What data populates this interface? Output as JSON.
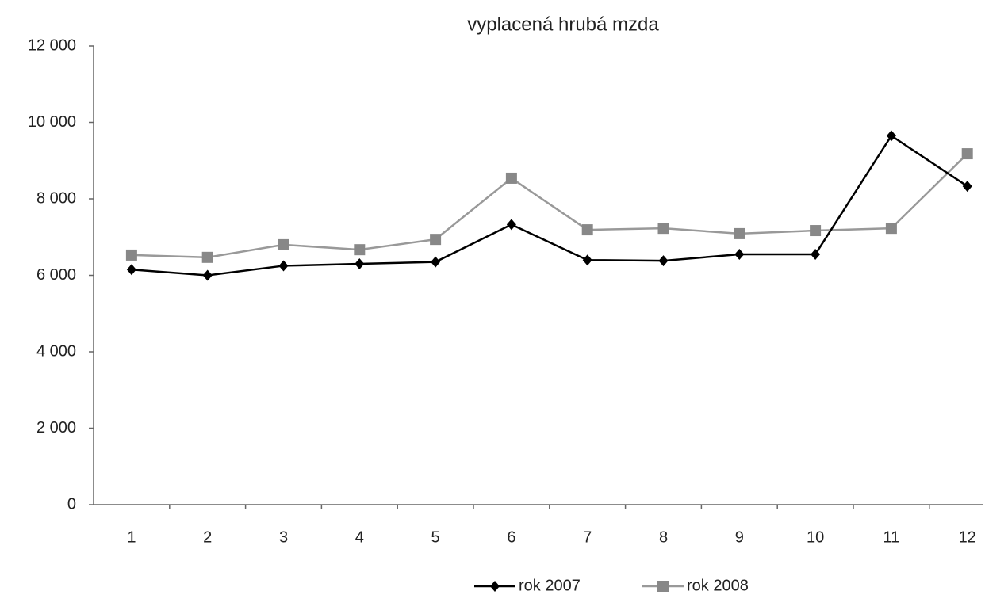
{
  "chart_data": {
    "type": "line",
    "title": "vyplacená hrubá mzda",
    "categories": [
      "1",
      "2",
      "3",
      "4",
      "5",
      "6",
      "7",
      "8",
      "9",
      "10",
      "11",
      "12"
    ],
    "series": [
      {
        "name": "rok 2007",
        "color": "#000000",
        "marker": "diamond",
        "values": [
          6150,
          6000,
          6250,
          6300,
          6350,
          7330,
          6400,
          6380,
          6550,
          6550,
          9650,
          8330
        ]
      },
      {
        "name": "rok 2008",
        "color": "#999999",
        "marker": "square",
        "values": [
          6530,
          6470,
          6800,
          6670,
          6940,
          8540,
          7190,
          7230,
          7090,
          7170,
          7230,
          9180
        ]
      }
    ],
    "ylim": [
      0,
      12000
    ],
    "yticks": [
      0,
      {
        "value": 2000,
        "label": "2 000"
      },
      {
        "value": 4000,
        "label": "4 000"
      },
      {
        "value": 6000,
        "label": "6 000"
      },
      {
        "value": 8000,
        "label": "8 000"
      },
      {
        "value": 10000,
        "label": "10 000"
      },
      {
        "value": 12000,
        "label": "12 000"
      }
    ],
    "legend": "bottom"
  }
}
